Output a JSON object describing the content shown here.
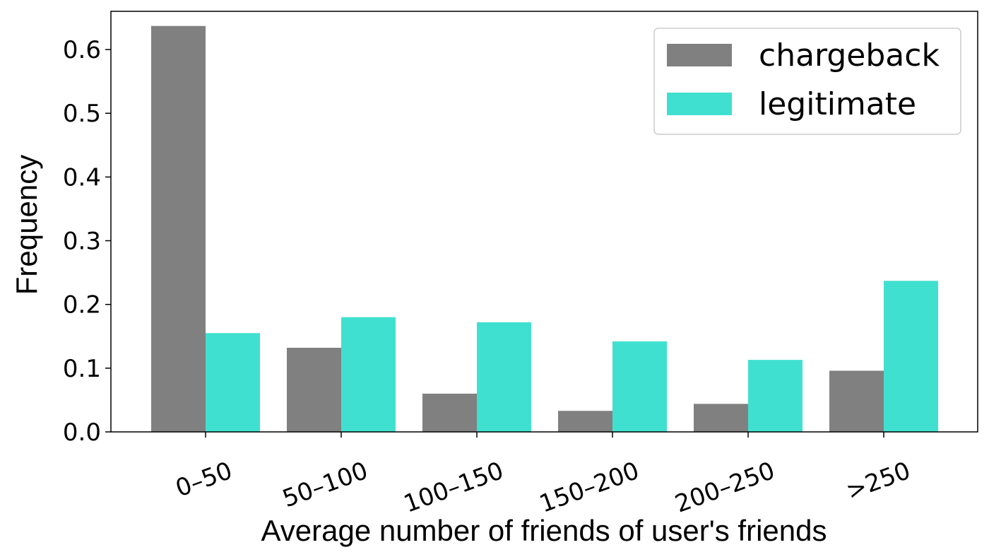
{
  "chart_data": {
    "type": "bar",
    "title": "",
    "xlabel": "Average number of friends of user's friends",
    "ylabel": "Frequency",
    "categories": [
      "0–50",
      "50–100",
      "100–150",
      "150–200",
      "200–250",
      ">250"
    ],
    "series": [
      {
        "name": "chargeback",
        "color": "#808080",
        "values": [
          0.637,
          0.132,
          0.06,
          0.033,
          0.044,
          0.096
        ]
      },
      {
        "name": "legitimate",
        "color": "#40e0d0",
        "values": [
          0.155,
          0.18,
          0.172,
          0.142,
          0.113,
          0.237
        ]
      }
    ],
    "ylim": [
      0,
      0.66
    ],
    "yticks": [
      "0.0",
      "0.1",
      "0.2",
      "0.3",
      "0.4",
      "0.5",
      "0.6"
    ],
    "grid": false,
    "legend_position": "top-right",
    "xtick_rotation": "rotated"
  }
}
